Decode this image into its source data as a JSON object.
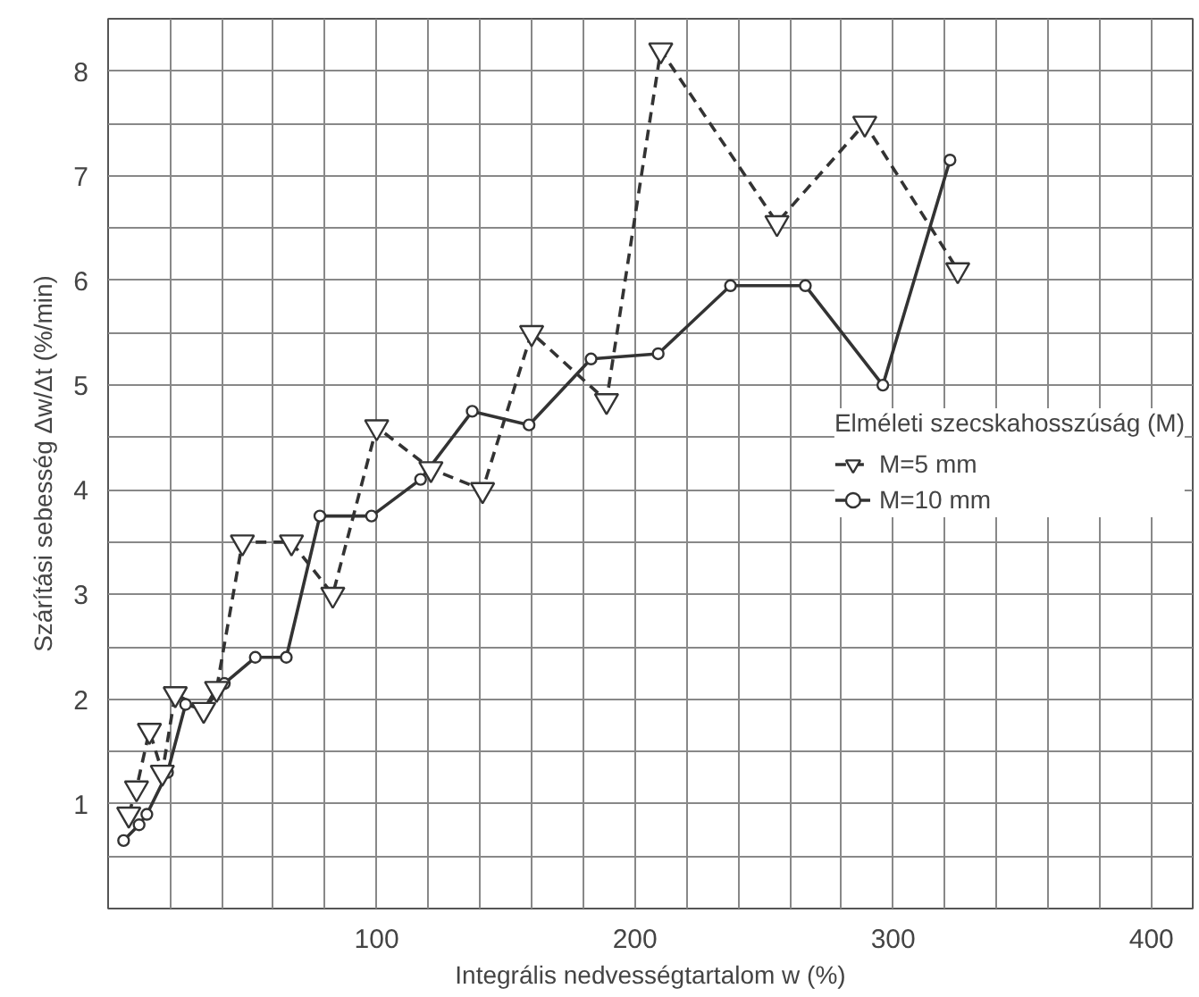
{
  "chart_data": {
    "type": "line",
    "xlabel": "Integrális nedvességtartalom w (%)",
    "ylabel": "Szárítási sebesség Δw/Δt (%/min)",
    "legend_title": "Elméleti szecskahosszúság (M)",
    "legend": "right",
    "grid": true,
    "xlim": [
      -4,
      416
    ],
    "ylim": [
      0,
      8.5
    ],
    "xticks": [
      {
        "value": 20,
        "label": null
      },
      {
        "value": 40,
        "label": null
      },
      {
        "value": 60,
        "label": null
      },
      {
        "value": 80,
        "label": null
      },
      100,
      {
        "value": 120,
        "label": null
      },
      {
        "value": 140,
        "label": null
      },
      {
        "value": 160,
        "label": null
      },
      {
        "value": 180,
        "label": null
      },
      200,
      {
        "value": 220,
        "label": null
      },
      {
        "value": 240,
        "label": null
      },
      {
        "value": 260,
        "label": null
      },
      {
        "value": 280,
        "label": null
      },
      300,
      {
        "value": 320,
        "label": null
      },
      {
        "value": 340,
        "label": null
      },
      {
        "value": 360,
        "label": null
      },
      {
        "value": 380,
        "label": null
      },
      400
    ],
    "yticks": [
      {
        "value": 0.5,
        "label": null
      },
      1,
      {
        "value": 1.5,
        "label": null
      },
      2,
      {
        "value": 2.5,
        "label": null
      },
      3,
      {
        "value": 3.5,
        "label": null
      },
      4,
      {
        "value": 4.5,
        "label": null
      },
      5,
      {
        "value": 5.5,
        "label": null
      },
      6,
      {
        "value": 6.5,
        "label": null
      },
      7,
      {
        "value": 7.5,
        "label": null
      },
      8
    ],
    "series": [
      {
        "name": "M=5 mm",
        "color": "#333333",
        "marker": "triangle",
        "line_style": "dashed",
        "x": [
          4,
          7,
          12,
          17,
          22,
          33,
          38,
          48,
          67,
          83,
          100,
          121,
          141,
          160,
          189,
          210,
          255,
          289,
          325
        ],
        "values": [
          0.9,
          1.15,
          1.7,
          1.3,
          2.05,
          1.9,
          2.1,
          3.5,
          3.5,
          3.0,
          4.6,
          4.2,
          4.0,
          5.5,
          4.85,
          8.2,
          6.55,
          7.5,
          6.1
        ]
      },
      {
        "name": "M=10 mm",
        "color": "#333333",
        "marker": "circle",
        "line_style": "solid",
        "x": [
          2,
          8,
          11,
          19,
          26,
          33,
          41,
          53,
          65,
          78,
          98,
          117,
          137,
          159,
          183,
          209,
          237,
          266,
          296,
          322
        ],
        "values": [
          0.65,
          0.8,
          0.9,
          1.3,
          1.95,
          1.9,
          2.15,
          2.4,
          2.4,
          3.75,
          3.75,
          4.1,
          4.75,
          4.62,
          5.25,
          5.3,
          5.95,
          5.95,
          5.0,
          7.15
        ]
      }
    ]
  }
}
